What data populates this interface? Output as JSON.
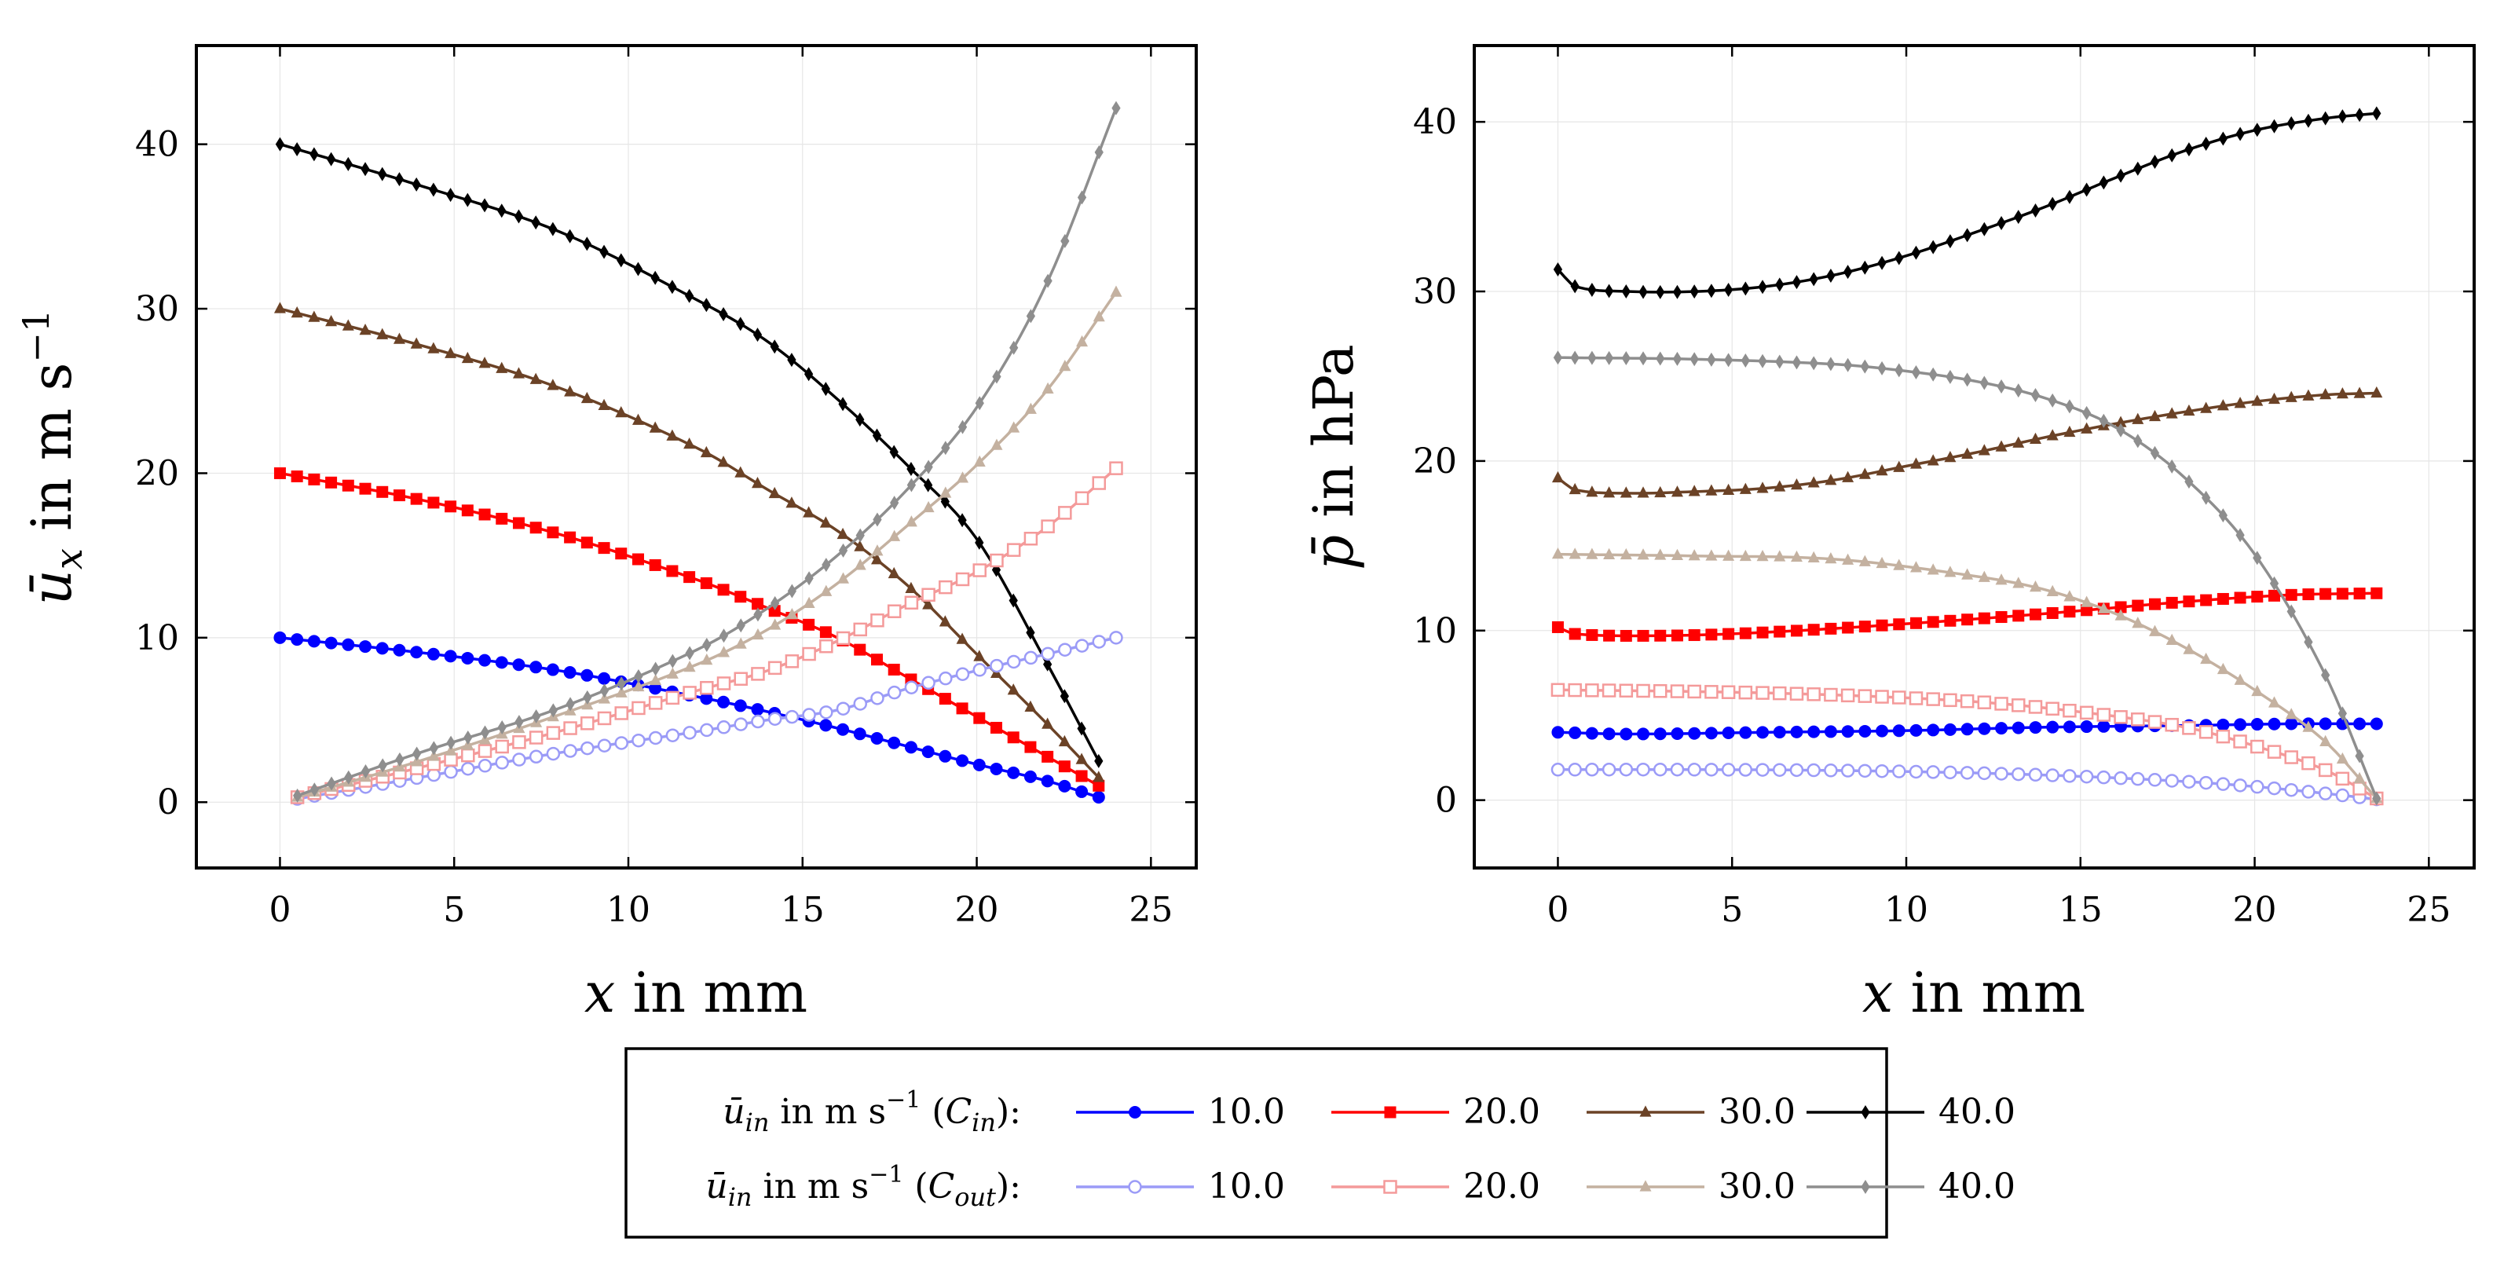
{
  "chart_data": [
    {
      "type": "line",
      "id": "velocity",
      "title": "",
      "xlabel": "x in mm",
      "ylabel": "ū_x in m s−1",
      "xlim": [
        -2.4,
        26.3
      ],
      "ylim": [
        -4.0,
        46.0
      ],
      "xticks": [
        0,
        5,
        10,
        15,
        20,
        25
      ],
      "yticks": [
        0,
        10,
        20,
        30,
        40
      ],
      "grid": true,
      "series": [
        {
          "name": "10.0",
          "group": "C_in",
          "color": "#0000ff",
          "marker": "circle",
          "x0": 0,
          "x1": 23.5,
          "points": [
            [
              0,
              10.0
            ],
            [
              4,
              9.1
            ],
            [
              8,
              8.0
            ],
            [
              12,
              6.4
            ],
            [
              14,
              5.5
            ],
            [
              16,
              4.5
            ],
            [
              18,
              3.4
            ],
            [
              20,
              2.3
            ],
            [
              22,
              1.3
            ],
            [
              23.5,
              0.3
            ]
          ]
        },
        {
          "name": "20.0",
          "group": "C_in",
          "color": "#ff0000",
          "marker": "square",
          "x0": 0,
          "x1": 23.5,
          "points": [
            [
              0,
              20.0
            ],
            [
              4,
              18.4
            ],
            [
              8,
              16.3
            ],
            [
              12,
              13.5
            ],
            [
              14,
              11.8
            ],
            [
              16,
              10.0
            ],
            [
              18,
              7.6
            ],
            [
              20,
              5.2
            ],
            [
              22,
              2.8
            ],
            [
              23.5,
              1.0
            ]
          ]
        },
        {
          "name": "30.0",
          "group": "C_in",
          "color": "#6b4226",
          "marker": "triangle",
          "x0": 0,
          "x1": 23.5,
          "points": [
            [
              0,
              30.0
            ],
            [
              4,
              27.8
            ],
            [
              8,
              25.2
            ],
            [
              12,
              21.5
            ],
            [
              14,
              19.0
            ],
            [
              16,
              16.5
            ],
            [
              18,
              13.2
            ],
            [
              20,
              9.0
            ],
            [
              22,
              4.8
            ],
            [
              23.5,
              1.5
            ]
          ]
        },
        {
          "name": "40.0",
          "group": "C_in",
          "color": "#000000",
          "marker": "diamond",
          "x0": 0,
          "x1": 23.5,
          "points": [
            [
              0,
              40.0
            ],
            [
              4,
              37.5
            ],
            [
              8,
              34.7
            ],
            [
              12,
              30.5
            ],
            [
              14,
              28.0
            ],
            [
              16,
              24.5
            ],
            [
              18,
              20.5
            ],
            [
              20,
              16.0
            ],
            [
              22,
              8.5
            ],
            [
              23.5,
              2.5
            ]
          ]
        },
        {
          "name": "10.0",
          "group": "C_out",
          "color": "#9b9bf7",
          "marker": "circle-open",
          "x0": 0.5,
          "x1": 24,
          "points": [
            [
              0.5,
              0.2
            ],
            [
              4,
              1.5
            ],
            [
              8,
              3.0
            ],
            [
              12,
              4.3
            ],
            [
              14,
              5.0
            ],
            [
              16,
              5.6
            ],
            [
              18,
              6.9
            ],
            [
              20,
              8.0
            ],
            [
              22,
              9.0
            ],
            [
              24,
              10.0
            ]
          ]
        },
        {
          "name": "20.0",
          "group": "C_out",
          "color": "#f49a9a",
          "marker": "square-open",
          "x0": 0.5,
          "x1": 24,
          "points": [
            [
              0.5,
              0.3
            ],
            [
              4,
              2.1
            ],
            [
              8,
              4.3
            ],
            [
              12,
              6.8
            ],
            [
              14,
              8.0
            ],
            [
              16,
              9.8
            ],
            [
              18,
              12.0
            ],
            [
              20,
              14.0
            ],
            [
              22,
              16.7
            ],
            [
              24,
              20.3
            ]
          ]
        },
        {
          "name": "30.0",
          "group": "C_out",
          "color": "#c4b1a0",
          "marker": "triangle",
          "x0": 0.5,
          "x1": 24,
          "points": [
            [
              0.5,
              0.3
            ],
            [
              4,
              2.5
            ],
            [
              8,
              5.3
            ],
            [
              12,
              8.4
            ],
            [
              14,
              10.5
            ],
            [
              16,
              13.3
            ],
            [
              18,
              16.8
            ],
            [
              20,
              20.5
            ],
            [
              22,
              25.0
            ],
            [
              24,
              31.0
            ]
          ]
        },
        {
          "name": "40.0",
          "group": "C_out",
          "color": "#8e8e8e",
          "marker": "diamond",
          "x0": 0.5,
          "x1": 24,
          "points": [
            [
              0.5,
              0.4
            ],
            [
              4,
              3.0
            ],
            [
              8,
              5.7
            ],
            [
              12,
              9.3
            ],
            [
              14,
              11.8
            ],
            [
              16,
              15.0
            ],
            [
              18,
              19.0
            ],
            [
              20,
              24.0
            ],
            [
              22,
              31.5
            ],
            [
              24,
              42.2
            ]
          ]
        }
      ]
    },
    {
      "type": "line",
      "id": "pressure",
      "title": "",
      "xlabel": "x in mm",
      "ylabel": "p̄ in hPa",
      "xlim": [
        -2.4,
        26.3
      ],
      "ylim": [
        -4.0,
        44.5
      ],
      "xticks": [
        0,
        5,
        10,
        15,
        20,
        25
      ],
      "yticks": [
        0,
        10,
        20,
        30,
        40
      ],
      "grid": true,
      "series": [
        {
          "name": "10.0",
          "group": "C_in",
          "color": "#0000ff",
          "marker": "circle",
          "x0": 0,
          "x1": 23.5,
          "points": [
            [
              0,
              4.0
            ],
            [
              2,
              3.9
            ],
            [
              6,
              4.0
            ],
            [
              10,
              4.1
            ],
            [
              14,
              4.3
            ],
            [
              18,
              4.4
            ],
            [
              21,
              4.5
            ],
            [
              23.5,
              4.5
            ]
          ]
        },
        {
          "name": "20.0",
          "group": "C_in",
          "color": "#ff0000",
          "marker": "square",
          "x0": 0,
          "x1": 23.5,
          "points": [
            [
              0,
              10.2
            ],
            [
              0.5,
              9.8
            ],
            [
              3,
              9.7
            ],
            [
              6,
              9.9
            ],
            [
              10,
              10.4
            ],
            [
              14,
              11.0
            ],
            [
              18,
              11.7
            ],
            [
              21,
              12.1
            ],
            [
              23.5,
              12.2
            ]
          ]
        },
        {
          "name": "30.0",
          "group": "C_in",
          "color": "#6b4226",
          "marker": "triangle",
          "x0": 0,
          "x1": 23.5,
          "points": [
            [
              0,
              19.0
            ],
            [
              0.5,
              18.3
            ],
            [
              2,
              18.1
            ],
            [
              4,
              18.2
            ],
            [
              6,
              18.4
            ],
            [
              8,
              18.9
            ],
            [
              10,
              19.7
            ],
            [
              12,
              20.5
            ],
            [
              14,
              21.4
            ],
            [
              16,
              22.2
            ],
            [
              18,
              22.9
            ],
            [
              20,
              23.5
            ],
            [
              22,
              23.9
            ],
            [
              23.5,
              24.0
            ]
          ]
        },
        {
          "name": "40.0",
          "group": "C_in",
          "color": "#000000",
          "marker": "diamond",
          "x0": 0,
          "x1": 23.5,
          "points": [
            [
              0,
              31.3
            ],
            [
              0.5,
              30.3
            ],
            [
              2,
              30.0
            ],
            [
              4,
              30.0
            ],
            [
              6,
              30.3
            ],
            [
              8,
              31.0
            ],
            [
              10,
              32.1
            ],
            [
              12,
              33.5
            ],
            [
              14,
              35.0
            ],
            [
              16,
              36.7
            ],
            [
              18,
              38.3
            ],
            [
              20,
              39.5
            ],
            [
              22,
              40.2
            ],
            [
              23.5,
              40.5
            ]
          ]
        },
        {
          "name": "10.0",
          "group": "C_out",
          "color": "#9b9bf7",
          "marker": "circle-open",
          "x0": 0,
          "x1": 23.5,
          "points": [
            [
              0,
              1.8
            ],
            [
              4,
              1.8
            ],
            [
              8,
              1.75
            ],
            [
              12,
              1.6
            ],
            [
              15,
              1.4
            ],
            [
              18,
              1.1
            ],
            [
              20,
              0.8
            ],
            [
              22,
              0.4
            ],
            [
              23.5,
              0.05
            ]
          ]
        },
        {
          "name": "20.0",
          "group": "C_out",
          "color": "#f49a9a",
          "marker": "square-open",
          "x0": 0,
          "x1": 23.5,
          "points": [
            [
              0,
              6.5
            ],
            [
              4,
              6.4
            ],
            [
              8,
              6.2
            ],
            [
              12,
              5.8
            ],
            [
              15,
              5.2
            ],
            [
              18,
              4.3
            ],
            [
              20,
              3.2
            ],
            [
              22,
              1.8
            ],
            [
              23.5,
              0.1
            ]
          ]
        },
        {
          "name": "30.0",
          "group": "C_out",
          "color": "#c4b1a0",
          "marker": "triangle",
          "x0": 0,
          "x1": 23.5,
          "points": [
            [
              0,
              14.5
            ],
            [
              4,
              14.4
            ],
            [
              8,
              14.2
            ],
            [
              12,
              13.2
            ],
            [
              14,
              12.4
            ],
            [
              16,
              11.0
            ],
            [
              18,
              9.0
            ],
            [
              20,
              6.5
            ],
            [
              22,
              3.5
            ],
            [
              23.5,
              0.1
            ]
          ]
        },
        {
          "name": "40.0",
          "group": "C_out",
          "color": "#8e8e8e",
          "marker": "diamond",
          "x0": 0,
          "x1": 23.5,
          "points": [
            [
              0,
              26.1
            ],
            [
              4,
              26.0
            ],
            [
              8,
              25.7
            ],
            [
              10,
              25.3
            ],
            [
              12,
              24.7
            ],
            [
              14,
              23.7
            ],
            [
              16,
              22.0
            ],
            [
              18,
              19.0
            ],
            [
              20,
              14.5
            ],
            [
              22,
              7.5
            ],
            [
              23.5,
              0.1
            ]
          ]
        }
      ]
    }
  ],
  "legend": {
    "row1_label": "ū_in in m s−1 (C_in):",
    "row2_label": "ū_in in m s−1 (C_out):",
    "entries": [
      "10.0",
      "20.0",
      "30.0",
      "40.0"
    ]
  }
}
